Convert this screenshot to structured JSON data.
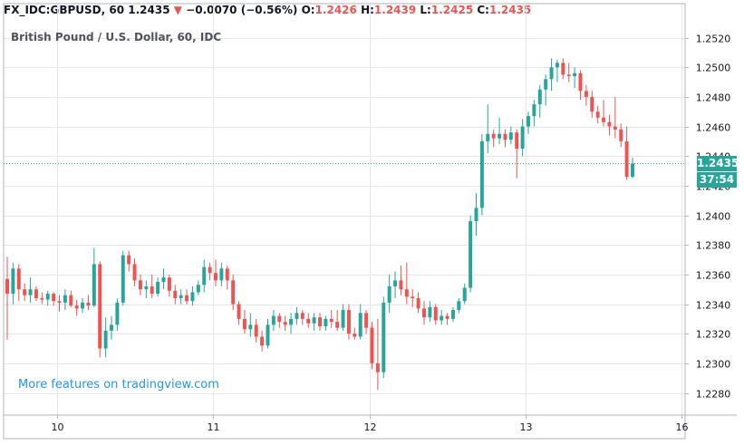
{
  "header": {
    "symbol": "FX_IDC:GBPUSD, 60",
    "last": "1.2435",
    "arrow": "▼",
    "change": "−0.0070 (−0.56%)",
    "o_label": "O:",
    "o_value": "1.2426",
    "h_label": "H:",
    "h_value": "1.2439",
    "l_label": "L:",
    "l_value": "1.2425",
    "c_label": "C:",
    "c_value": "1.2435"
  },
  "watermark": "More features on tradingview.com",
  "colors": {
    "up": "#26a69a",
    "down": "#ef5350",
    "grid": "#e6e6e6",
    "axis_text": "#131722",
    "watermark": "#2196f3"
  },
  "chart_data": {
    "type": "candlestick",
    "title": "British Pound / U.S. Dollar, 60, IDC",
    "ylim": [
      1.2265,
      1.2532
    ],
    "y_ticks": [
      "1.2280",
      "1.2300",
      "1.2320",
      "1.2340",
      "1.2360",
      "1.2380",
      "1.2400",
      "1.2420",
      "1.2440",
      "1.2460",
      "1.2480",
      "1.2500",
      "1.2520"
    ],
    "x_ticks": [
      "10",
      "11",
      "12",
      "13",
      "16"
    ],
    "grid": true,
    "last_price": "1.2435",
    "countdown": "37:54",
    "candles": [
      [
        1.2357,
        1.2372,
        1.2316,
        1.2347
      ],
      [
        1.2347,
        1.2368,
        1.234,
        1.2364
      ],
      [
        1.2364,
        1.2367,
        1.2342,
        1.235
      ],
      [
        1.235,
        1.2354,
        1.2342,
        1.2346
      ],
      [
        1.2346,
        1.2358,
        1.2341,
        1.235
      ],
      [
        1.235,
        1.2352,
        1.2342,
        1.2344
      ],
      [
        1.2344,
        1.2348,
        1.234,
        1.2343
      ],
      [
        1.2343,
        1.2349,
        1.2339,
        1.2347
      ],
      [
        1.2347,
        1.2348,
        1.2339,
        1.2342
      ],
      [
        1.2342,
        1.2346,
        1.2335,
        1.2341
      ],
      [
        1.2341,
        1.235,
        1.2336,
        1.2346
      ],
      [
        1.2346,
        1.2349,
        1.2338,
        1.2339
      ],
      [
        1.2339,
        1.2343,
        1.2332,
        1.2337
      ],
      [
        1.2337,
        1.2344,
        1.2334,
        1.2341
      ],
      [
        1.2341,
        1.2346,
        1.2336,
        1.2339
      ],
      [
        1.2339,
        1.2378,
        1.2338,
        1.2367
      ],
      [
        1.2367,
        1.2369,
        1.2304,
        1.231
      ],
      [
        1.231,
        1.2331,
        1.2304,
        1.2322
      ],
      [
        1.2322,
        1.2332,
        1.2316,
        1.2326
      ],
      [
        1.2326,
        1.2344,
        1.2322,
        1.2341
      ],
      [
        1.2341,
        1.2376,
        1.2339,
        1.2373
      ],
      [
        1.2373,
        1.2376,
        1.2362,
        1.2367
      ],
      [
        1.2367,
        1.2371,
        1.2352,
        1.2356
      ],
      [
        1.2356,
        1.236,
        1.2346,
        1.235
      ],
      [
        1.235,
        1.2356,
        1.2344,
        1.2352
      ],
      [
        1.2352,
        1.236,
        1.2344,
        1.2347
      ],
      [
        1.2347,
        1.2358,
        1.2345,
        1.2355
      ],
      [
        1.2355,
        1.2364,
        1.235,
        1.2358
      ],
      [
        1.2358,
        1.236,
        1.2345,
        1.2349
      ],
      [
        1.2349,
        1.2353,
        1.234,
        1.2344
      ],
      [
        1.2344,
        1.235,
        1.234,
        1.2346
      ],
      [
        1.2346,
        1.235,
        1.234,
        1.2342
      ],
      [
        1.2342,
        1.2352,
        1.2339,
        1.2348
      ],
      [
        1.2348,
        1.2356,
        1.2346,
        1.2353
      ],
      [
        1.2353,
        1.237,
        1.2348,
        1.2365
      ],
      [
        1.2365,
        1.2368,
        1.2356,
        1.2361
      ],
      [
        1.2361,
        1.237,
        1.2352,
        1.2356
      ],
      [
        1.2356,
        1.2368,
        1.2352,
        1.2364
      ],
      [
        1.2364,
        1.2366,
        1.235,
        1.2356
      ],
      [
        1.2356,
        1.236,
        1.2336,
        1.234
      ],
      [
        1.234,
        1.2342,
        1.2326,
        1.233
      ],
      [
        1.233,
        1.2336,
        1.232,
        1.2323
      ],
      [
        1.2323,
        1.2334,
        1.2318,
        1.2326
      ],
      [
        1.2326,
        1.233,
        1.2314,
        1.2318
      ],
      [
        1.2318,
        1.2322,
        1.2308,
        1.2312
      ],
      [
        1.2312,
        1.233,
        1.231,
        1.2326
      ],
      [
        1.2326,
        1.2336,
        1.2322,
        1.2332
      ],
      [
        1.2332,
        1.2334,
        1.2324,
        1.2328
      ],
      [
        1.2328,
        1.2332,
        1.2322,
        1.2326
      ],
      [
        1.2326,
        1.2334,
        1.232,
        1.233
      ],
      [
        1.233,
        1.2338,
        1.2326,
        1.2334
      ],
      [
        1.2334,
        1.2336,
        1.2326,
        1.233
      ],
      [
        1.233,
        1.2334,
        1.2324,
        1.2327
      ],
      [
        1.2327,
        1.2334,
        1.2322,
        1.2331
      ],
      [
        1.2331,
        1.2334,
        1.2322,
        1.2325
      ],
      [
        1.2325,
        1.2332,
        1.2322,
        1.233
      ],
      [
        1.233,
        1.2336,
        1.2324,
        1.2328
      ],
      [
        1.2328,
        1.2336,
        1.2322,
        1.2324
      ],
      [
        1.2324,
        1.234,
        1.2322,
        1.2336
      ],
      [
        1.2336,
        1.234,
        1.2316,
        1.232
      ],
      [
        1.232,
        1.2324,
        1.2316,
        1.2318
      ],
      [
        1.2318,
        1.234,
        1.2316,
        1.2334
      ],
      [
        1.2334,
        1.2336,
        1.232,
        1.2324
      ],
      [
        1.2324,
        1.2328,
        1.2296,
        1.23
      ],
      [
        1.23,
        1.233,
        1.2282,
        1.2294
      ],
      [
        1.2294,
        1.2345,
        1.229,
        1.2341
      ],
      [
        1.2341,
        1.236,
        1.2334,
        1.2352
      ],
      [
        1.2352,
        1.2362,
        1.2344,
        1.2356
      ],
      [
        1.2356,
        1.2366,
        1.2346,
        1.235
      ],
      [
        1.235,
        1.2368,
        1.234,
        1.2345
      ],
      [
        1.2345,
        1.235,
        1.2338,
        1.2344
      ],
      [
        1.2344,
        1.2348,
        1.2334,
        1.2337
      ],
      [
        1.2337,
        1.2342,
        1.2326,
        1.2331
      ],
      [
        1.2331,
        1.2342,
        1.2328,
        1.2338
      ],
      [
        1.2338,
        1.234,
        1.2326,
        1.2329
      ],
      [
        1.2329,
        1.2336,
        1.2326,
        1.2332
      ],
      [
        1.2332,
        1.2334,
        1.2326,
        1.233
      ],
      [
        1.233,
        1.2338,
        1.2328,
        1.2336
      ],
      [
        1.2336,
        1.2344,
        1.2334,
        1.2342
      ],
      [
        1.2342,
        1.2354,
        1.234,
        1.2351
      ],
      [
        1.2351,
        1.24,
        1.2348,
        1.2396
      ],
      [
        1.2396,
        1.2415,
        1.2386,
        1.2405
      ],
      [
        1.2405,
        1.2455,
        1.24,
        1.245
      ],
      [
        1.245,
        1.2475,
        1.2442,
        1.2455
      ],
      [
        1.2455,
        1.2458,
        1.2446,
        1.2452
      ],
      [
        1.2452,
        1.2466,
        1.2448,
        1.2455
      ],
      [
        1.2455,
        1.2458,
        1.2446,
        1.2451
      ],
      [
        1.2451,
        1.246,
        1.2448,
        1.2456
      ],
      [
        1.2456,
        1.2458,
        1.2425,
        1.2445
      ],
      [
        1.2445,
        1.2465,
        1.244,
        1.246
      ],
      [
        1.246,
        1.247,
        1.2455,
        1.2467
      ],
      [
        1.2467,
        1.2478,
        1.246,
        1.2475
      ],
      [
        1.2475,
        1.2488,
        1.2466,
        1.2485
      ],
      [
        1.2485,
        1.2495,
        1.2474,
        1.2492
      ],
      [
        1.2492,
        1.2506,
        1.2484,
        1.25
      ],
      [
        1.25,
        1.2505,
        1.249,
        1.2503
      ],
      [
        1.2503,
        1.2506,
        1.2492,
        1.2495
      ],
      [
        1.2495,
        1.2503,
        1.249,
        1.2494
      ],
      [
        1.2494,
        1.25,
        1.2486,
        1.2496
      ],
      [
        1.2496,
        1.2498,
        1.2478,
        1.2484
      ],
      [
        1.2484,
        1.2488,
        1.2474,
        1.248
      ],
      [
        1.248,
        1.2484,
        1.2466,
        1.247
      ],
      [
        1.247,
        1.2474,
        1.2462,
        1.2466
      ],
      [
        1.2466,
        1.2478,
        1.246,
        1.2463
      ],
      [
        1.2463,
        1.2468,
        1.2454,
        1.246
      ],
      [
        1.246,
        1.248,
        1.2452,
        1.2458
      ],
      [
        1.2458,
        1.2462,
        1.2446,
        1.245
      ],
      [
        1.245,
        1.246,
        1.2424,
        1.2426
      ],
      [
        1.2426,
        1.2439,
        1.2425,
        1.2435
      ]
    ]
  }
}
